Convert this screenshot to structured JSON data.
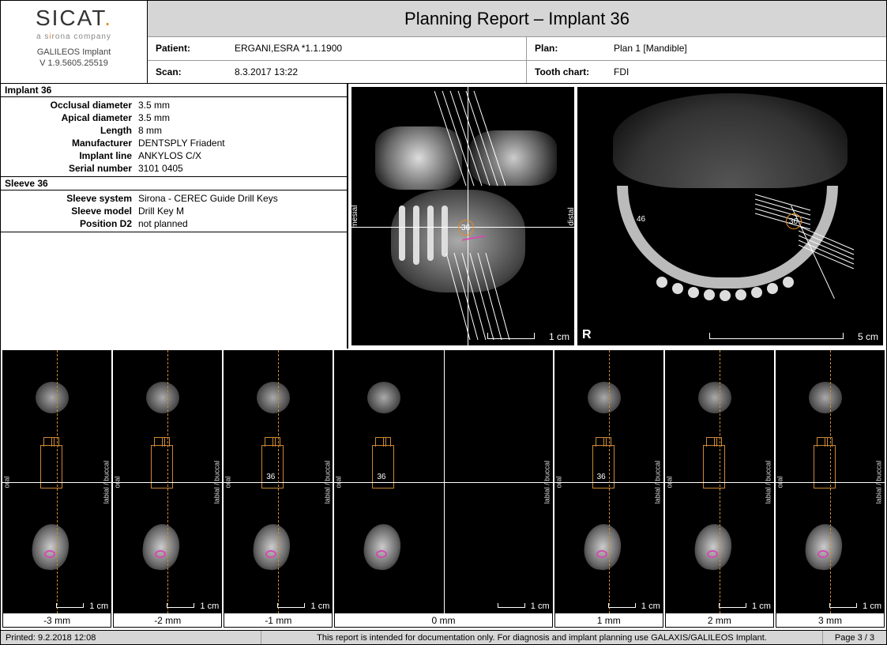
{
  "logo": {
    "brand": "SICAT",
    "subtitle": "a sirona company",
    "app": "GALILEOS Implant",
    "version": "V 1.9.5605.25519"
  },
  "title": "Planning Report – Implant 36",
  "header": {
    "patient_label": "Patient:",
    "patient": "ERGANI,ESRA *1.1.1900",
    "scan_label": "Scan:",
    "scan": "8.3.2017 13:22",
    "plan_label": "Plan:",
    "plan": "Plan 1 [Mandible]",
    "tooth_label": "Tooth chart:",
    "tooth": "FDI"
  },
  "implant": {
    "title": "Implant 36",
    "rows": [
      {
        "k": "Occlusal diameter",
        "v": "3.5 mm"
      },
      {
        "k": "Apical diameter",
        "v": "3.5 mm"
      },
      {
        "k": "Length",
        "v": "8 mm"
      },
      {
        "k": "",
        "v": ""
      },
      {
        "k": "Manufacturer",
        "v": "DENTSPLY Friadent"
      },
      {
        "k": "Implant line",
        "v": "ANKYLOS C/X"
      },
      {
        "k": "Serial number",
        "v": "3101 0405"
      }
    ]
  },
  "sleeve": {
    "title": "Sleeve 36",
    "rows": [
      {
        "k": "Sleeve system",
        "v": "Sirona - CEREC Guide Drill Keys"
      },
      {
        "k": "Sleeve model",
        "v": "Drill Key M"
      },
      {
        "k": "Position D2",
        "v": "not planned"
      }
    ]
  },
  "ct1": {
    "mesial": "mesial",
    "distal": "distal",
    "scale": "1 cm",
    "implant_label": "36"
  },
  "ct2": {
    "r": "R",
    "scale": "5 cm",
    "m46": "46",
    "m36": "36"
  },
  "slices": {
    "scale": "1 cm",
    "side_left": "oral",
    "side_right": "labial / buccal",
    "labels": [
      "-3 mm",
      "-2 mm",
      "-1 mm",
      "0 mm",
      "1 mm",
      "2 mm",
      "3 mm"
    ],
    "n36": "36"
  },
  "footer": {
    "printed": "Printed: 9.2.2018 12:08",
    "disclaimer": "This report is intended for documentation only. For diagnosis and implant planning use GALAXIS/GALILEOS Implant.",
    "page": "Page 3 / 3"
  }
}
